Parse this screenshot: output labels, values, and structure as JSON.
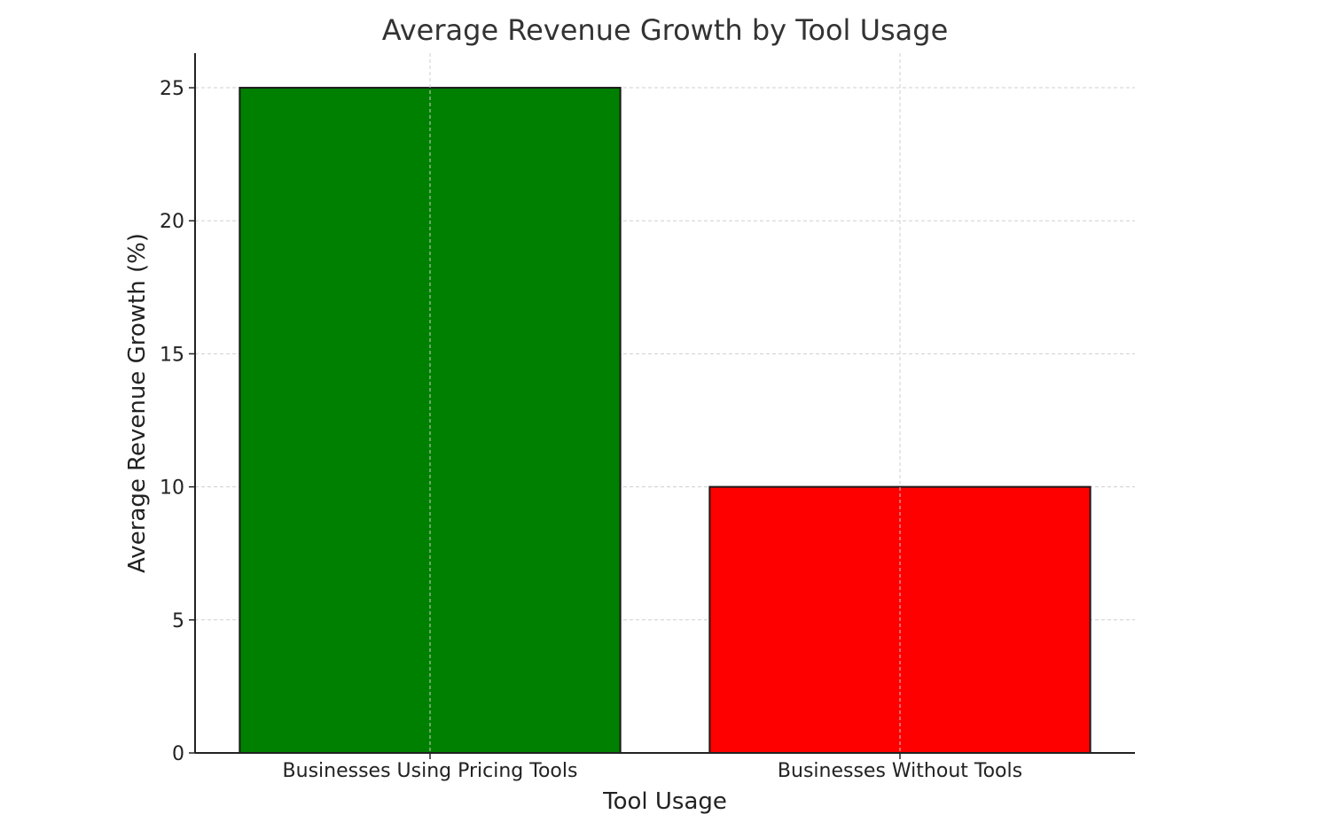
{
  "chart_data": {
    "type": "bar",
    "title": "Average Revenue Growth by Tool Usage",
    "xlabel": "Tool Usage",
    "ylabel": "Average Revenue Growth (%)",
    "categories": [
      "Businesses Using Pricing Tools",
      "Businesses Without Tools"
    ],
    "values": [
      25,
      10
    ],
    "colors": [
      "#008000",
      "#ff0000"
    ],
    "ylim": [
      0,
      26.3
    ],
    "yticks": [
      0,
      5,
      10,
      15,
      20,
      25
    ],
    "grid": true
  }
}
